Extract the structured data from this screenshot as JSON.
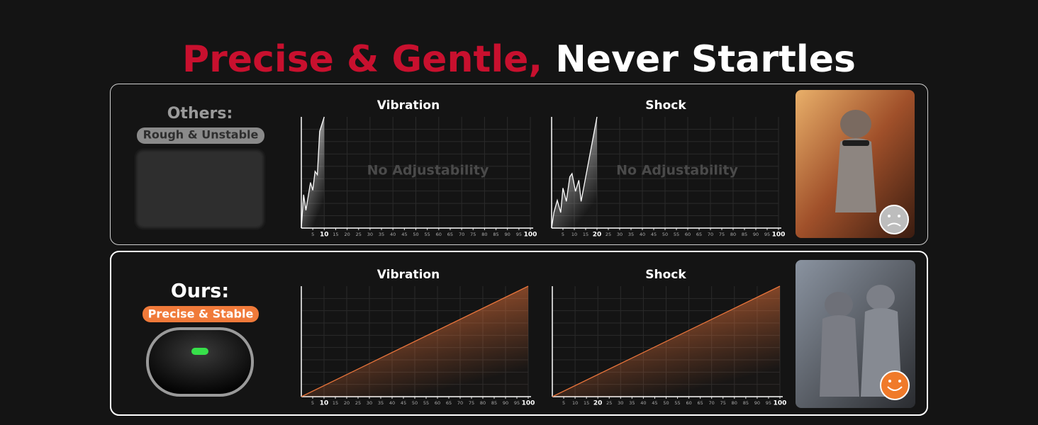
{
  "header": {
    "title_accent": "Precise & Gentle,",
    "title_rest": "Never Startles"
  },
  "rows": [
    {
      "label": "Others:",
      "badge": "Rough & Unstable"
    },
    {
      "label": "Ours:",
      "badge": "Precise & Stable"
    }
  ],
  "chart_data": [
    {
      "type": "line",
      "title": "Vibration",
      "annotation": "No Adjustability",
      "color": "#ffffff",
      "x": [
        0,
        1,
        2,
        4,
        5,
        6,
        7,
        8,
        10
      ],
      "values": [
        0,
        30,
        16,
        41,
        34,
        51,
        48,
        87,
        100
      ],
      "xlim": [
        0,
        100
      ],
      "ylim": [
        0,
        100
      ],
      "xticks": [
        5,
        10,
        15,
        20,
        25,
        30,
        35,
        40,
        45,
        50,
        55,
        60,
        65,
        70,
        75,
        80,
        85,
        90,
        95,
        100
      ],
      "emphasized_ticks": [
        10,
        100
      ],
      "grid": true
    },
    {
      "type": "line",
      "title": "Shock",
      "annotation": "No Adjustability",
      "color": "#ffffff",
      "x": [
        0,
        1,
        2.5,
        4,
        5,
        6.5,
        8,
        9,
        10.5,
        12,
        13,
        20
      ],
      "values": [
        0,
        14,
        25,
        14,
        36,
        24,
        46,
        49,
        33,
        43,
        24,
        100
      ],
      "xlim": [
        0,
        100
      ],
      "ylim": [
        0,
        100
      ],
      "xticks": [
        5,
        10,
        15,
        20,
        25,
        30,
        35,
        40,
        45,
        50,
        55,
        60,
        65,
        70,
        75,
        80,
        85,
        90,
        95,
        100
      ],
      "emphasized_ticks": [
        20,
        100
      ],
      "grid": true
    },
    {
      "type": "line",
      "title": "Vibration",
      "color": "#e8743b",
      "x": [
        0,
        100
      ],
      "values": [
        0,
        100
      ],
      "xlim": [
        0,
        100
      ],
      "ylim": [
        0,
        100
      ],
      "xticks": [
        5,
        10,
        15,
        20,
        25,
        30,
        35,
        40,
        45,
        50,
        55,
        60,
        65,
        70,
        75,
        80,
        85,
        90,
        95,
        100
      ],
      "emphasized_ticks": [
        10,
        100
      ],
      "grid": true
    },
    {
      "type": "line",
      "title": "Shock",
      "color": "#e8743b",
      "x": [
        0,
        100
      ],
      "values": [
        0,
        100
      ],
      "xlim": [
        0,
        100
      ],
      "ylim": [
        0,
        100
      ],
      "xticks": [
        5,
        10,
        15,
        20,
        25,
        30,
        35,
        40,
        45,
        50,
        55,
        60,
        65,
        70,
        75,
        80,
        85,
        90,
        95,
        100
      ],
      "emphasized_ticks": [
        20,
        100
      ],
      "grid": true
    }
  ]
}
